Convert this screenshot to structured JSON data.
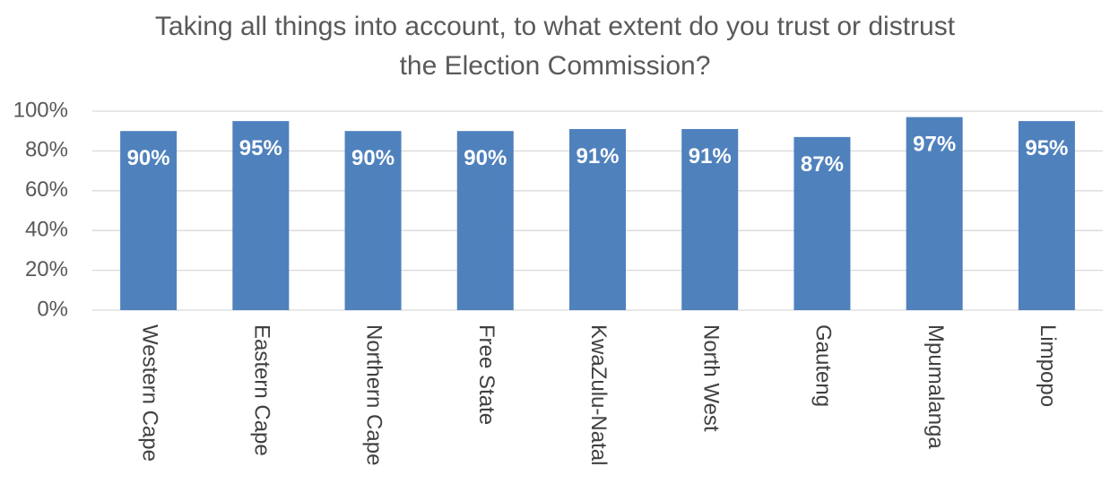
{
  "chart_data": {
    "type": "bar",
    "title": "Taking all things into account, to what extent do you trust or distrust the Election Commission?",
    "title_lines": [
      "Taking all things into account, to what extent do you trust or distrust",
      "the Election Commission?"
    ],
    "categories": [
      "Western Cape",
      "Eastern Cape",
      "Northern Cape",
      "Free State",
      "KwaZulu-Natal",
      "North West",
      "Gauteng",
      "Mpumalanga",
      "Limpopo"
    ],
    "values": [
      90,
      95,
      90,
      90,
      91,
      91,
      87,
      97,
      95
    ],
    "data_labels": [
      "90%",
      "95%",
      "90%",
      "90%",
      "91%",
      "91%",
      "87%",
      "97%",
      "95%"
    ],
    "y_ticks": [
      "0%",
      "20%",
      "40%",
      "60%",
      "80%",
      "100%"
    ],
    "ylim": [
      0,
      100
    ],
    "xlabel": "",
    "ylabel": "",
    "grid": true,
    "legend": "none",
    "bar_color": "#4f81bd",
    "gridline_color": "#d9d9d9",
    "label_color": "#ffffff"
  }
}
